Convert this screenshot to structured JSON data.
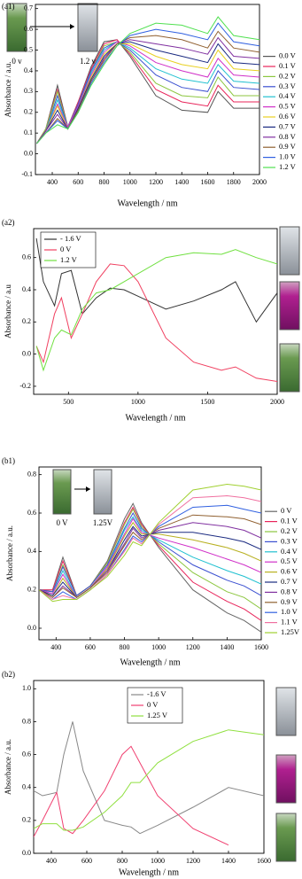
{
  "chart_data": [
    {
      "type": "line",
      "panel_label": "(a1)",
      "xlabel": "Wavelength / nm",
      "ylabel": "Absorbance / a.u.",
      "annotations": [
        "0 v",
        "1.2 v"
      ],
      "legend": "right",
      "xlim": [
        270,
        2000
      ],
      "xticks": [
        400,
        600,
        800,
        1000,
        1200,
        1400,
        1600,
        1800,
        2000
      ],
      "ylim": [
        -0.1,
        0.72
      ],
      "yticks": [
        -0.1,
        {
          "value": 0,
          "label": "0.0"
        },
        0.1,
        0.2,
        0.3,
        0.4,
        0.5,
        0.6,
        0.7
      ],
      "x": [
        280,
        350,
        440,
        520,
        600,
        700,
        800,
        900,
        1000,
        1200,
        1400,
        1600,
        1680,
        1800,
        2000
      ],
      "series": [
        {
          "name": "0.0 V",
          "color": "#555555",
          "values": [
            0.05,
            0.12,
            0.33,
            0.13,
            0.25,
            0.42,
            0.54,
            0.55,
            0.47,
            0.28,
            0.21,
            0.2,
            0.3,
            0.22,
            0.22
          ]
        },
        {
          "name": "0.1 V",
          "color": "#e8245a",
          "values": [
            0.05,
            0.12,
            0.31,
            0.13,
            0.25,
            0.41,
            0.53,
            0.55,
            0.48,
            0.31,
            0.25,
            0.23,
            0.33,
            0.25,
            0.25
          ]
        },
        {
          "name": "0.2 V",
          "color": "#8cc63f",
          "values": [
            0.05,
            0.12,
            0.3,
            0.13,
            0.24,
            0.4,
            0.52,
            0.54,
            0.49,
            0.34,
            0.28,
            0.27,
            0.37,
            0.28,
            0.28
          ]
        },
        {
          "name": "0.3 V",
          "color": "#3a4fd0",
          "values": [
            0.05,
            0.11,
            0.28,
            0.13,
            0.24,
            0.4,
            0.51,
            0.54,
            0.5,
            0.38,
            0.32,
            0.3,
            0.4,
            0.32,
            0.31
          ]
        },
        {
          "name": "0.4 V",
          "color": "#20c0d0",
          "values": [
            0.05,
            0.11,
            0.26,
            0.13,
            0.23,
            0.39,
            0.5,
            0.54,
            0.51,
            0.41,
            0.36,
            0.34,
            0.43,
            0.35,
            0.34
          ]
        },
        {
          "name": "0.5 V",
          "color": "#d030c8",
          "values": [
            0.05,
            0.11,
            0.24,
            0.13,
            0.23,
            0.38,
            0.49,
            0.54,
            0.52,
            0.44,
            0.4,
            0.37,
            0.46,
            0.38,
            0.37
          ]
        },
        {
          "name": "0.6 V",
          "color": "#e8d020",
          "values": [
            0.05,
            0.11,
            0.23,
            0.12,
            0.22,
            0.37,
            0.48,
            0.53,
            0.53,
            0.47,
            0.43,
            0.41,
            0.5,
            0.41,
            0.4
          ]
        },
        {
          "name": "0.7 V",
          "color": "#1a2a80",
          "values": [
            0.05,
            0.11,
            0.21,
            0.12,
            0.22,
            0.36,
            0.47,
            0.53,
            0.54,
            0.5,
            0.47,
            0.44,
            0.53,
            0.44,
            0.43
          ]
        },
        {
          "name": "0.8 V",
          "color": "#8030a0",
          "values": [
            0.05,
            0.11,
            0.19,
            0.12,
            0.21,
            0.35,
            0.46,
            0.53,
            0.55,
            0.53,
            0.51,
            0.48,
            0.56,
            0.47,
            0.46
          ]
        },
        {
          "name": "0.9 V",
          "color": "#906030",
          "values": [
            0.05,
            0.1,
            0.17,
            0.12,
            0.21,
            0.35,
            0.45,
            0.53,
            0.56,
            0.57,
            0.55,
            0.51,
            0.59,
            0.51,
            0.49
          ]
        },
        {
          "name": "1.0 V",
          "color": "#3060e0",
          "values": [
            0.05,
            0.1,
            0.16,
            0.12,
            0.2,
            0.34,
            0.44,
            0.52,
            0.57,
            0.6,
            0.58,
            0.55,
            0.63,
            0.54,
            0.52
          ]
        },
        {
          "name": "1.2 V",
          "color": "#50e050",
          "values": [
            0.05,
            0.1,
            0.14,
            0.12,
            0.2,
            0.33,
            0.43,
            0.52,
            0.58,
            0.63,
            0.62,
            0.58,
            0.66,
            0.57,
            0.55
          ]
        }
      ]
    },
    {
      "type": "line",
      "panel_label": "(a2)",
      "xlabel": "Wavelength / nm",
      "ylabel": "Absorbance / a.u",
      "legend": "upper left",
      "xlim": [
        250,
        2000
      ],
      "xticks": [
        500,
        1000,
        1500,
        2000
      ],
      "ylim": [
        -0.25,
        0.78
      ],
      "yticks": [
        -0.2,
        {
          "value": 0,
          "label": "0.0"
        },
        0.2,
        0.4,
        0.6
      ],
      "x": [
        270,
        320,
        400,
        450,
        520,
        600,
        700,
        800,
        900,
        1000,
        1200,
        1400,
        1600,
        1700,
        1850,
        2000
      ],
      "series": [
        {
          "name": "- 1.6 V",
          "color": "#333333",
          "values": [
            0.72,
            0.45,
            0.3,
            0.5,
            0.52,
            0.25,
            0.35,
            0.41,
            0.4,
            0.36,
            0.28,
            0.33,
            0.4,
            0.45,
            0.2,
            0.38
          ]
        },
        {
          "name": "0  V",
          "color": "#f04060",
          "values": [
            0.05,
            -0.05,
            0.25,
            0.35,
            0.1,
            0.25,
            0.45,
            0.56,
            0.55,
            0.45,
            0.1,
            -0.05,
            -0.1,
            -0.08,
            -0.15,
            -0.17
          ]
        },
        {
          "name": "1.2 V",
          "color": "#70e040",
          "values": [
            0.05,
            -0.1,
            0.1,
            0.15,
            0.12,
            0.28,
            0.38,
            0.4,
            0.45,
            0.5,
            0.6,
            0.63,
            0.62,
            0.65,
            0.6,
            0.56
          ]
        }
      ]
    },
    {
      "type": "line",
      "panel_label": "(b1)",
      "xlabel": "Wavelength / nm",
      "ylabel": "Absorbance / a.u.",
      "annotations": [
        "0 V",
        "1.25V"
      ],
      "legend": "right",
      "xlim": [
        300,
        1600
      ],
      "xticks": [
        400,
        600,
        800,
        1000,
        1200,
        1400,
        1600
      ],
      "ylim": [
        -0.06,
        0.84
      ],
      "yticks": [
        {
          "value": 0,
          "label": "0.0"
        },
        0.2,
        0.4,
        0.6,
        0.8
      ],
      "x": [
        300,
        380,
        440,
        520,
        600,
        700,
        800,
        850,
        900,
        1000,
        1200,
        1400,
        1500,
        1600
      ],
      "series": [
        {
          "name": "0   V",
          "color": "#666666",
          "values": [
            0.2,
            0.2,
            0.37,
            0.17,
            0.22,
            0.35,
            0.57,
            0.65,
            0.55,
            0.42,
            0.2,
            0.08,
            0.04,
            -0.02
          ]
        },
        {
          "name": "0.1 V",
          "color": "#e8245a",
          "values": [
            0.2,
            0.2,
            0.35,
            0.17,
            0.22,
            0.34,
            0.55,
            0.63,
            0.54,
            0.43,
            0.24,
            0.14,
            0.1,
            0.04
          ]
        },
        {
          "name": "0.2 V",
          "color": "#8cc63f",
          "values": [
            0.2,
            0.19,
            0.33,
            0.17,
            0.22,
            0.34,
            0.54,
            0.62,
            0.53,
            0.44,
            0.29,
            0.19,
            0.16,
            0.1
          ]
        },
        {
          "name": "0.3 V",
          "color": "#3a4fd0",
          "values": [
            0.2,
            0.19,
            0.32,
            0.17,
            0.22,
            0.33,
            0.52,
            0.6,
            0.52,
            0.45,
            0.33,
            0.25,
            0.22,
            0.17
          ]
        },
        {
          "name": "0.4 V",
          "color": "#20c0d0",
          "values": [
            0.2,
            0.18,
            0.3,
            0.16,
            0.21,
            0.32,
            0.51,
            0.58,
            0.51,
            0.46,
            0.37,
            0.3,
            0.27,
            0.23
          ]
        },
        {
          "name": "0.5 V",
          "color": "#d030c8",
          "values": [
            0.2,
            0.18,
            0.28,
            0.16,
            0.21,
            0.32,
            0.49,
            0.57,
            0.5,
            0.47,
            0.42,
            0.36,
            0.33,
            0.29
          ]
        },
        {
          "name": "0.6 V",
          "color": "#b8b020",
          "values": [
            0.2,
            0.17,
            0.26,
            0.16,
            0.21,
            0.31,
            0.48,
            0.55,
            0.49,
            0.49,
            0.46,
            0.42,
            0.39,
            0.35
          ]
        },
        {
          "name": "0.7 V",
          "color": "#1a2a80",
          "values": [
            0.2,
            0.17,
            0.24,
            0.16,
            0.21,
            0.3,
            0.46,
            0.53,
            0.48,
            0.5,
            0.5,
            0.47,
            0.45,
            0.41
          ]
        },
        {
          "name": "0.8 V",
          "color": "#8030a0",
          "values": [
            0.2,
            0.16,
            0.22,
            0.16,
            0.21,
            0.3,
            0.44,
            0.52,
            0.47,
            0.51,
            0.55,
            0.53,
            0.51,
            0.47
          ]
        },
        {
          "name": "0.9 V",
          "color": "#906030",
          "values": [
            0.2,
            0.16,
            0.21,
            0.16,
            0.21,
            0.29,
            0.43,
            0.5,
            0.46,
            0.52,
            0.59,
            0.58,
            0.57,
            0.54
          ]
        },
        {
          "name": "1.0 V",
          "color": "#3060e0",
          "values": [
            0.2,
            0.15,
            0.19,
            0.15,
            0.2,
            0.28,
            0.41,
            0.48,
            0.45,
            0.53,
            0.63,
            0.64,
            0.62,
            0.6
          ]
        },
        {
          "name": "1.1 V",
          "color": "#f070a0",
          "values": [
            0.2,
            0.15,
            0.17,
            0.15,
            0.2,
            0.28,
            0.4,
            0.47,
            0.44,
            0.54,
            0.68,
            0.69,
            0.68,
            0.66
          ]
        },
        {
          "name": "1.25V",
          "color": "#a0d030",
          "values": [
            0.2,
            0.14,
            0.15,
            0.15,
            0.2,
            0.27,
            0.38,
            0.45,
            0.43,
            0.55,
            0.72,
            0.75,
            0.74,
            0.72
          ]
        }
      ]
    },
    {
      "type": "line",
      "panel_label": "(b2)",
      "xlabel": "Wavelength / nm",
      "ylabel": "Absorbance / a.u.",
      "legend": "upper center",
      "xlim": [
        300,
        1600
      ],
      "xticks": [
        400,
        600,
        800,
        1000,
        1200,
        1400,
        1600
      ],
      "ylim": [
        0,
        1.05
      ],
      "yticks": [
        {
          "value": 0,
          "label": "0.0"
        },
        0.2,
        0.4,
        0.6,
        0.8,
        {
          "value": 1,
          "label": "1.0"
        }
      ],
      "x": [
        300,
        350,
        430,
        470,
        520,
        580,
        700,
        800,
        850,
        900,
        1000,
        1200,
        1400,
        1600
      ],
      "series": [
        {
          "name": "-1.6 V",
          "color": "#888888",
          "values": [
            0.38,
            0.35,
            0.37,
            0.6,
            0.8,
            0.5,
            0.2,
            0.17,
            0.16,
            0.12,
            0.17,
            0.28,
            0.4,
            0.35
          ]
        },
        {
          "name": "0  V",
          "color": "#f04070",
          "values": [
            0.1,
            0.2,
            0.37,
            0.15,
            0.12,
            0.2,
            0.38,
            0.6,
            0.65,
            0.55,
            0.35,
            0.15,
            0.05,
            null
          ]
        },
        {
          "name": "1.25 V",
          "color": "#90e040",
          "values": [
            0.15,
            0.18,
            0.18,
            0.14,
            0.14,
            0.16,
            0.25,
            0.35,
            0.43,
            0.43,
            0.55,
            0.68,
            0.75,
            0.72
          ]
        }
      ]
    }
  ]
}
